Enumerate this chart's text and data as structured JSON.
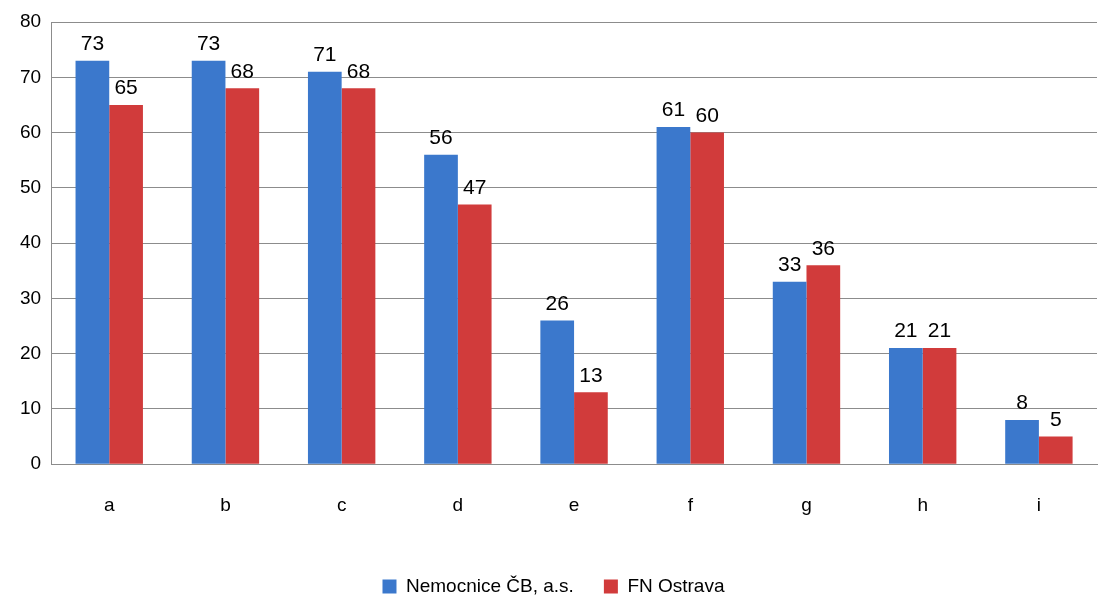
{
  "chart_data": {
    "type": "bar",
    "categories": [
      "a",
      "b",
      "c",
      "d",
      "e",
      "f",
      "g",
      "h",
      "i"
    ],
    "series": [
      {
        "name": "Nemocnice ČB, a.s.",
        "color": "#3b78cc",
        "values": [
          73,
          73,
          71,
          56,
          26,
          61,
          33,
          21,
          8
        ]
      },
      {
        "name": "FN Ostrava",
        "color": "#d13b3b",
        "values": [
          65,
          68,
          68,
          47,
          13,
          60,
          36,
          21,
          5
        ]
      }
    ],
    "ylim": [
      0,
      80
    ],
    "yticks": [
      0,
      10,
      20,
      30,
      40,
      50,
      60,
      70,
      80
    ],
    "grid": "y",
    "legend": "bottom",
    "data_labels": true
  }
}
